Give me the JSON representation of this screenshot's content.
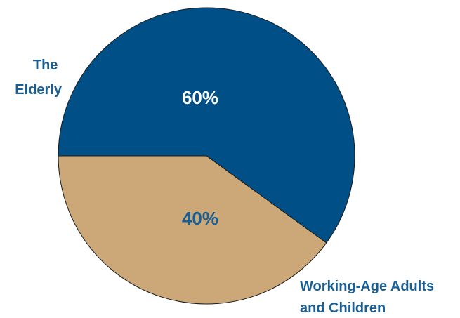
{
  "chart_data": {
    "type": "pie",
    "title": "",
    "slices": [
      {
        "label_lines": [
          "The",
          "Elderly"
        ],
        "value": 60,
        "value_label": "60%",
        "color": "#004f86",
        "value_label_color": "#ffffff",
        "label_color": "#1a5f93"
      },
      {
        "label_lines": [
          "Working-Age Adults",
          "and Children"
        ],
        "value": 40,
        "value_label": "40%",
        "color": "#cca878",
        "value_label_color": "#1a5f93",
        "label_color": "#1a5f93"
      }
    ],
    "start_angle_deg": 180,
    "direction": "clockwise"
  }
}
